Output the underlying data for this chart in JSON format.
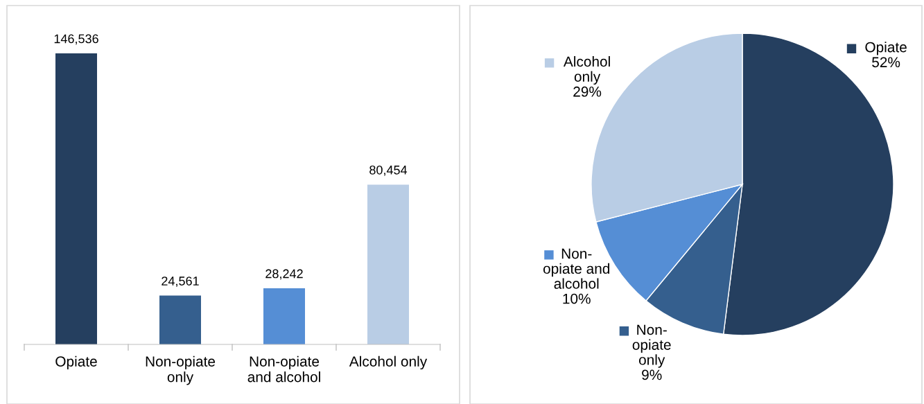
{
  "chart_data": [
    {
      "type": "bar",
      "categories": [
        "Opiate",
        "Non-opiate\nonly",
        "Non-opiate\nand alcohol",
        "Alcohol only"
      ],
      "values": [
        146536,
        24561,
        28242,
        80454
      ],
      "colors": [
        "#253f5f",
        "#355f8e",
        "#558ed5",
        "#b9cde5"
      ],
      "value_labels": [
        "146,536",
        "24,561",
        "28,242",
        "80,454"
      ],
      "grid": false
    },
    {
      "type": "pie",
      "categories": [
        "Opiate",
        "Non-\nopiate\nonly",
        "Non-\nopiate and\nalcohol",
        "Alcohol\nonly"
      ],
      "values": [
        52,
        9,
        10,
        29
      ],
      "colors": [
        "#253f5f",
        "#355f8e",
        "#558ed5",
        "#b9cde5"
      ],
      "value_labels": [
        "52%",
        "9%",
        "10%",
        "29%"
      ],
      "legend": "bottom left"
    }
  ]
}
